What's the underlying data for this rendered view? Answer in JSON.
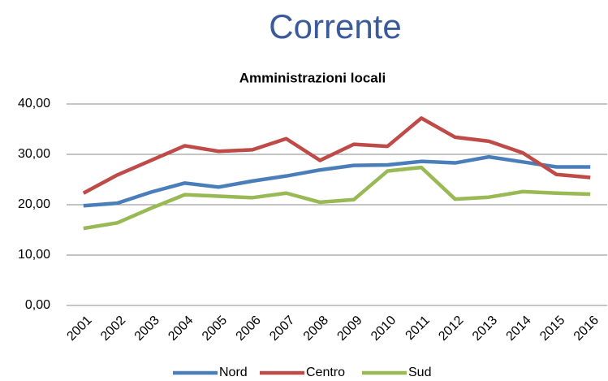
{
  "chart_data": {
    "type": "line",
    "title": "Corrente",
    "subtitle": "Amministrazioni locali",
    "categories": [
      "2001",
      "2002",
      "2003",
      "2004",
      "2005",
      "2006",
      "2007",
      "2008",
      "2009",
      "2010",
      "2011",
      "2012",
      "2013",
      "2014",
      "2015",
      "2016"
    ],
    "series": [
      {
        "name": "Nord",
        "color": "#4a7ebb",
        "values": [
          19.8,
          20.3,
          22.5,
          24.3,
          23.5,
          24.7,
          25.7,
          26.9,
          27.8,
          27.9,
          28.6,
          28.3,
          29.5,
          28.5,
          27.5,
          27.5
        ]
      },
      {
        "name": "Centro",
        "color": "#be4b48",
        "values": [
          22.3,
          25.9,
          28.8,
          31.7,
          30.6,
          30.9,
          33.1,
          28.8,
          32.0,
          31.6,
          37.2,
          33.4,
          32.6,
          30.3,
          26.0,
          25.4
        ]
      },
      {
        "name": "Sud",
        "color": "#98b954",
        "values": [
          15.3,
          16.4,
          19.3,
          22.0,
          21.7,
          21.4,
          22.3,
          20.5,
          21.0,
          26.7,
          27.4,
          21.1,
          21.5,
          22.6,
          22.3,
          22.1
        ]
      }
    ],
    "ylim": [
      0,
      40
    ],
    "yticks": [
      {
        "value": 0,
        "label": "0,00"
      },
      {
        "value": 10,
        "label": "10,00"
      },
      {
        "value": 20,
        "label": "20,00"
      },
      {
        "value": 30,
        "label": "30,00"
      },
      {
        "value": 40,
        "label": "40,00"
      }
    ],
    "grid": true,
    "legend": "bottom"
  }
}
